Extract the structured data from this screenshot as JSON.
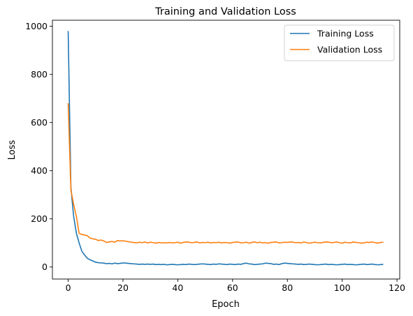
{
  "chart_data": {
    "type": "line",
    "title": "Training and Validation Loss",
    "xlabel": "Epoch",
    "ylabel": "Loss",
    "xlim": [
      -5.75,
      121
    ],
    "ylim": [
      -50,
      1025
    ],
    "xticks": [
      0,
      20,
      40,
      60,
      80,
      100,
      120
    ],
    "yticks": [
      0,
      200,
      400,
      600,
      800,
      1000
    ],
    "grid": false,
    "legend_position": "top-right",
    "series": [
      {
        "name": "Training Loss",
        "color": "#1f77b4",
        "x": [
          0,
          1,
          2,
          3,
          4,
          5,
          6,
          7,
          8,
          9,
          10,
          11,
          12,
          13,
          14,
          15,
          16,
          17,
          18,
          19,
          20,
          21,
          22,
          23,
          24,
          25,
          26,
          27,
          28,
          29,
          30,
          31,
          32,
          33,
          34,
          35,
          36,
          37,
          38,
          39,
          40,
          41,
          42,
          43,
          44,
          45,
          46,
          47,
          48,
          49,
          50,
          51,
          52,
          53,
          54,
          55,
          56,
          57,
          58,
          59,
          60,
          61,
          62,
          63,
          64,
          65,
          66,
          67,
          68,
          69,
          70,
          71,
          72,
          73,
          74,
          75,
          76,
          77,
          78,
          79,
          80,
          81,
          82,
          83,
          84,
          85,
          86,
          87,
          88,
          89,
          90,
          91,
          92,
          93,
          94,
          95,
          96,
          97,
          98,
          99,
          100,
          101,
          102,
          103,
          104,
          105,
          106,
          107,
          108,
          109,
          110,
          111,
          112,
          113,
          114,
          115
        ],
        "y": [
          980,
          330,
          210,
          140,
          100,
          65,
          50,
          36,
          30,
          25,
          20,
          18,
          17,
          16,
          14,
          15,
          13,
          16,
          14,
          15,
          17,
          16,
          15,
          14,
          13,
          12,
          11,
          12,
          11,
          12,
          11,
          12,
          10,
          11,
          10,
          11,
          9,
          10,
          11,
          10,
          9,
          10,
          11,
          10,
          12,
          11,
          10,
          11,
          12,
          13,
          12,
          11,
          10,
          12,
          11,
          13,
          12,
          11,
          10,
          12,
          11,
          10,
          12,
          11,
          14,
          16,
          13,
          12,
          10,
          11,
          12,
          13,
          16,
          15,
          14,
          11,
          12,
          10,
          14,
          16,
          15,
          14,
          13,
          12,
          11,
          12,
          10,
          11,
          12,
          11,
          10,
          9,
          10,
          11,
          12,
          10,
          11,
          10,
          9,
          10,
          11,
          12,
          10,
          11,
          10,
          9,
          10,
          11,
          12,
          10,
          11,
          12,
          10,
          9,
          10,
          11
        ]
      },
      {
        "name": "Validation Loss",
        "color": "#ff7f0e",
        "x": [
          0,
          1,
          2,
          3,
          4,
          5,
          6,
          7,
          8,
          9,
          10,
          11,
          12,
          13,
          14,
          15,
          16,
          17,
          18,
          19,
          20,
          21,
          22,
          23,
          24,
          25,
          26,
          27,
          28,
          29,
          30,
          31,
          32,
          33,
          34,
          35,
          36,
          37,
          38,
          39,
          40,
          41,
          42,
          43,
          44,
          45,
          46,
          47,
          48,
          49,
          50,
          51,
          52,
          53,
          54,
          55,
          56,
          57,
          58,
          59,
          60,
          61,
          62,
          63,
          64,
          65,
          66,
          67,
          68,
          69,
          70,
          71,
          72,
          73,
          74,
          75,
          76,
          77,
          78,
          79,
          80,
          81,
          82,
          83,
          84,
          85,
          86,
          87,
          88,
          89,
          90,
          91,
          92,
          93,
          94,
          95,
          96,
          97,
          98,
          99,
          100,
          101,
          102,
          103,
          104,
          105,
          106,
          107,
          108,
          109,
          110,
          111,
          112,
          113,
          114,
          115
        ],
        "y": [
          680,
          320,
          260,
          210,
          140,
          135,
          133,
          130,
          120,
          117,
          115,
          110,
          112,
          108,
          102,
          104,
          106,
          103,
          110,
          108,
          109,
          107,
          105,
          103,
          102,
          100,
          103,
          101,
          104,
          100,
          103,
          101,
          99,
          102,
          100,
          101,
          100,
          102,
          100,
          101,
          103,
          99,
          102,
          104,
          103,
          101,
          102,
          104,
          100,
          102,
          101,
          103,
          100,
          102,
          101,
          103,
          100,
          102,
          101,
          99,
          102,
          103,
          104,
          100,
          101,
          103,
          99,
          102,
          104,
          101,
          103,
          100,
          101,
          99,
          102,
          103,
          104,
          100,
          101,
          103,
          102,
          104,
          103,
          101,
          102,
          100,
          104,
          101,
          99,
          101,
          103,
          101,
          100,
          102,
          104,
          103,
          101,
          102,
          104,
          101,
          99,
          103,
          101,
          100,
          104,
          102,
          101,
          99,
          100,
          103,
          102,
          104,
          101,
          99,
          102,
          103
        ]
      }
    ]
  }
}
